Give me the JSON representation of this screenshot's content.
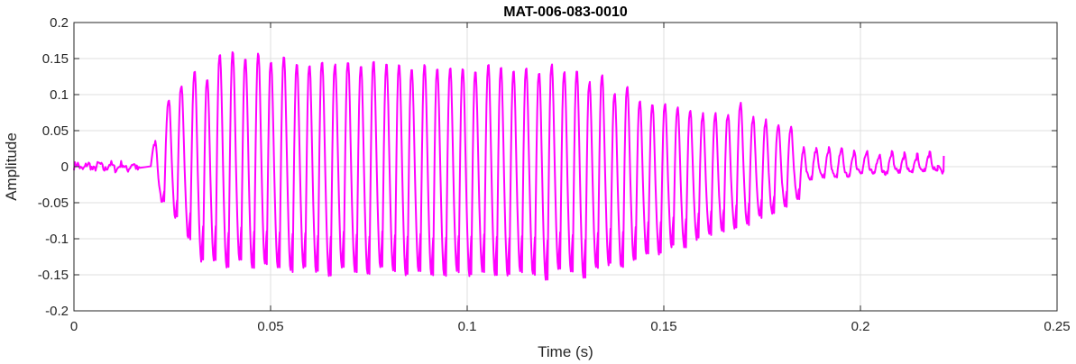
{
  "chart_data": {
    "type": "line",
    "title": "MAT-006-083-0010",
    "xlabel": "Time (s)",
    "ylabel": "Amplitude",
    "xlim": [
      0,
      0.25
    ],
    "ylim": [
      -0.2,
      0.2
    ],
    "xticks": [
      0,
      0.05,
      0.1,
      0.15,
      0.2,
      0.25
    ],
    "xtick_labels": [
      "0",
      "0.05",
      "0.1",
      "0.15",
      "0.2",
      "0.25"
    ],
    "yticks": [
      -0.2,
      -0.15,
      -0.1,
      -0.05,
      0,
      0.05,
      0.1,
      0.15,
      0.2
    ],
    "ytick_labels": [
      "-0.2",
      "-0.15",
      "-0.1",
      "-0.05",
      "0",
      "0.05",
      "0.1",
      "0.15",
      "0.2"
    ],
    "grid": true,
    "series": [
      {
        "color": "#ff00ff",
        "waveform": {
          "start_time": 0,
          "end_time": 0.2212,
          "cycle_peaks_times": [
            0.0205,
            0.024,
            0.0272,
            0.0306,
            0.0338,
            0.037,
            0.0403,
            0.0435,
            0.0468,
            0.05,
            0.0533,
            0.0566,
            0.0598,
            0.063,
            0.0663,
            0.0696,
            0.0729,
            0.0761,
            0.0794,
            0.0826,
            0.0858,
            0.0891,
            0.0923,
            0.0956,
            0.0988,
            0.102,
            0.1053,
            0.1085,
            0.1117,
            0.1149,
            0.1182,
            0.1214,
            0.1246,
            0.1278,
            0.131,
            0.1342,
            0.1374,
            0.1406,
            0.1438,
            0.147,
            0.1502,
            0.1534,
            0.1566,
            0.1598,
            0.163,
            0.1662,
            0.1694,
            0.1726,
            0.1758,
            0.179,
            0.1822,
            0.1854,
            0.1886,
            0.1918,
            0.195,
            0.1982,
            0.2014,
            0.2046,
            0.2078,
            0.211,
            0.2142,
            0.2174
          ],
          "cycle_max": [
            0.03,
            0.09,
            0.11,
            0.13,
            0.12,
            0.155,
            0.158,
            0.15,
            0.155,
            0.145,
            0.15,
            0.14,
            0.14,
            0.145,
            0.14,
            0.145,
            0.14,
            0.145,
            0.14,
            0.14,
            0.135,
            0.14,
            0.135,
            0.135,
            0.135,
            0.13,
            0.14,
            0.135,
            0.13,
            0.135,
            0.13,
            0.14,
            0.13,
            0.13,
            0.115,
            0.125,
            0.1,
            0.11,
            0.09,
            0.085,
            0.085,
            0.08,
            0.075,
            0.07,
            0.07,
            0.07,
            0.085,
            0.065,
            0.06,
            0.055,
            0.05,
            0.02,
            0.02,
            0.02,
            0.02,
            0.015,
            0.015,
            0.01,
            0.015,
            0.012,
            0.01,
            0.015
          ],
          "cycle_min": [
            -0.05,
            -0.07,
            -0.1,
            -0.13,
            -0.13,
            -0.14,
            -0.13,
            -0.14,
            -0.135,
            -0.14,
            -0.145,
            -0.14,
            -0.145,
            -0.15,
            -0.14,
            -0.145,
            -0.15,
            -0.14,
            -0.145,
            -0.15,
            -0.145,
            -0.15,
            -0.15,
            -0.145,
            -0.15,
            -0.145,
            -0.15,
            -0.15,
            -0.145,
            -0.15,
            -0.155,
            -0.14,
            -0.145,
            -0.155,
            -0.14,
            -0.135,
            -0.14,
            -0.13,
            -0.12,
            -0.12,
            -0.11,
            -0.11,
            -0.1,
            -0.095,
            -0.09,
            -0.085,
            -0.08,
            -0.07,
            -0.065,
            -0.055,
            -0.045,
            -0.02,
            -0.015,
            -0.015,
            -0.015,
            -0.01,
            -0.01,
            -0.01,
            -0.008,
            -0.008,
            -0.006,
            -0.006
          ]
        }
      }
    ]
  }
}
